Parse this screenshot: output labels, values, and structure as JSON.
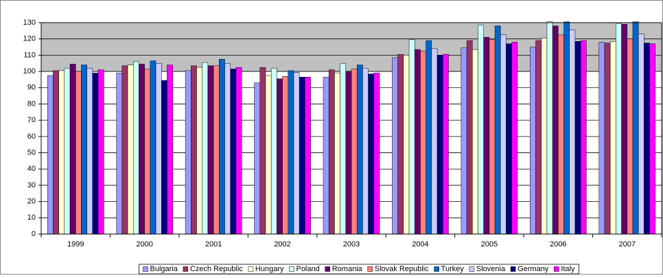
{
  "chart_data": {
    "type": "bar",
    "categories": [
      "1999",
      "2000",
      "2001",
      "2002",
      "2003",
      "2004",
      "2005",
      "2006",
      "2007"
    ],
    "series": [
      {
        "name": "Bulgaria",
        "color": "#9999ff",
        "values": [
          97.5,
          99,
          100.5,
          93,
          96.5,
          108.5,
          114.5,
          115,
          118
        ]
      },
      {
        "name": "Czech Republic",
        "color": "#993366",
        "values": [
          100.5,
          103.5,
          103.5,
          102.5,
          101,
          110.5,
          119,
          119,
          117.5
        ]
      },
      {
        "name": "Hungary",
        "color": "#ffffcc",
        "values": [
          100.5,
          104,
          102.5,
          97.5,
          99,
          110,
          113.5,
          120.5,
          118.5
        ]
      },
      {
        "name": "Poland",
        "color": "#ccffff",
        "values": [
          102,
          106,
          105.5,
          102,
          105,
          119.5,
          128.5,
          130.5,
          129.5
        ]
      },
      {
        "name": "Romania",
        "color": "#660066",
        "values": [
          104.5,
          104.5,
          103.5,
          95.5,
          100,
          113.5,
          121,
          128,
          129
        ]
      },
      {
        "name": "Slovak Republic",
        "color": "#ff8080",
        "values": [
          100,
          101.5,
          103.5,
          97,
          101.5,
          112.5,
          119.5,
          122.5,
          120
        ]
      },
      {
        "name": "Turkey",
        "color": "#0066cc",
        "values": [
          104,
          106.5,
          107.5,
          100.5,
          104,
          119,
          128,
          130.5,
          130.5
        ]
      },
      {
        "name": "Slovenia",
        "color": "#ccccff",
        "values": [
          102,
          105,
          105,
          99.5,
          102,
          114,
          122.5,
          125.5,
          123
        ]
      },
      {
        "name": "Germany",
        "color": "#000080",
        "values": [
          99,
          94.5,
          101.5,
          96.5,
          98.5,
          110,
          117,
          118.5,
          117.5
        ]
      },
      {
        "name": "Italy",
        "color": "#ff00ff",
        "values": [
          101,
          104,
          102.5,
          96.5,
          99,
          110.5,
          118,
          119,
          117
        ]
      }
    ],
    "ylim": [
      0,
      130
    ],
    "yticks": [
      0,
      10,
      20,
      30,
      40,
      50,
      60,
      70,
      80,
      90,
      100,
      110,
      120,
      130
    ],
    "grid": true,
    "shaded_range": [
      100,
      130
    ],
    "legend": "bottom"
  }
}
